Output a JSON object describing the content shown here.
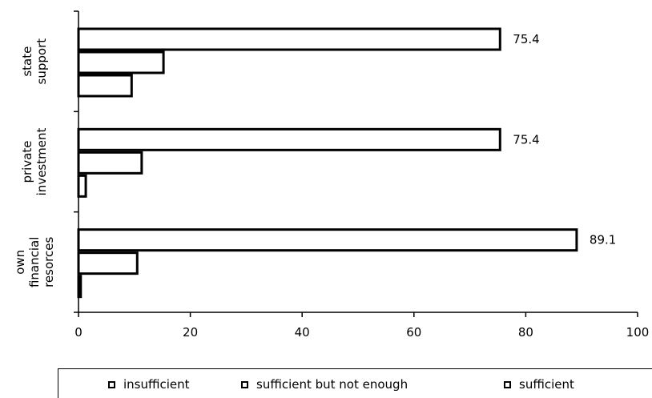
{
  "chart_data": {
    "type": "bar",
    "orientation": "horizontal",
    "categories": [
      "state support",
      "private investment",
      "own financial resorces"
    ],
    "category_lines": [
      [
        "state",
        "support"
      ],
      [
        "private",
        "investment"
      ],
      [
        "own",
        "financial",
        "resorces"
      ]
    ],
    "series": [
      {
        "name": "insufficient",
        "values": [
          75.4,
          75.4,
          89.1
        ]
      },
      {
        "name": "sufficient but not enough",
        "values": [
          15.2,
          11.3,
          10.5
        ]
      },
      {
        "name": "sufficient",
        "values": [
          9.5,
          1.3,
          0.4
        ]
      }
    ],
    "data_labels": [
      "75.4",
      "75.4",
      "89.1"
    ],
    "xlim": [
      0,
      100
    ],
    "xticks": [
      0,
      20,
      40,
      60,
      80,
      100
    ],
    "legend_position": "bottom",
    "grid": false
  },
  "colors": {
    "bar_fill": "#ffffff",
    "bar_stroke": "#000000",
    "axis": "#000000"
  }
}
